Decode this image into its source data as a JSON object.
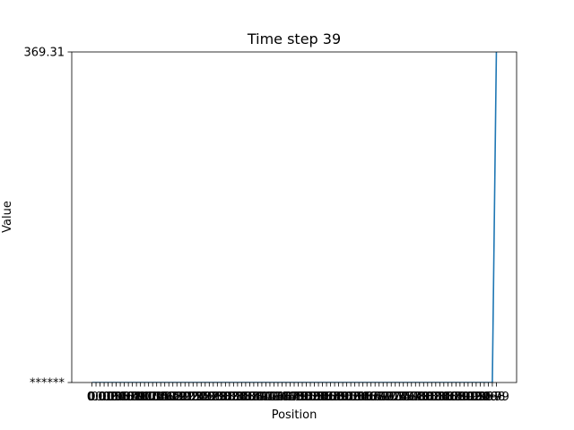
{
  "chart_data": {
    "type": "line",
    "title": "Time step 39",
    "xlabel": "Position",
    "ylabel": "Value",
    "x_tick_labels": [
      "0",
      "0.0",
      "0.01",
      "0.02",
      "0.03",
      "0.04",
      "0.05",
      "0.06",
      "0.07",
      "0.08",
      "0.09",
      "0.10",
      "0.11",
      "0.12",
      "0.13",
      "0.14",
      "0.15",
      "0.16",
      "0.17",
      "0.18",
      "0.19",
      "0.20",
      "0.21",
      "0.22",
      "0.23",
      "0.24",
      "0.25",
      "0.26",
      "0.27",
      "0.28",
      "0.29",
      "0.30",
      "0.31",
      "0.32",
      "0.33",
      "0.34",
      "0.35",
      "0.36",
      "0.37",
      "0.38",
      "0.39",
      "0.40",
      "0.41",
      "0.42",
      "0.43",
      "0.44",
      "0.45",
      "0.46",
      "0.47",
      "0.48",
      "0.49",
      "0.50",
      "0.51",
      "0.52",
      "0.53",
      "0.54",
      "0.55",
      "0.56",
      "0.57",
      "0.58",
      "0.59",
      "0.60",
      "0.61",
      "0.62",
      "0.63",
      "0.64",
      "0.65",
      "0.66",
      "0.67",
      "0.68",
      "0.69",
      "0.70",
      "0.71",
      "0.72",
      "0.73",
      "0.74",
      "0.75",
      "0.76",
      "0.77",
      "0.78",
      "0.79",
      "0.80",
      "0.81",
      "0.82",
      "0.83",
      "0.84",
      "0.85",
      "0.86",
      "0.87",
      "0.88",
      "0.89",
      "0.90",
      "0.91",
      "0.92",
      "0.93",
      "0.94",
      "0.95",
      "0.96",
      "0.97",
      "0.98",
      "0.99",
      "1.00"
    ],
    "y_tick_labels": [
      "******",
      "369.31"
    ],
    "ylim": [
      0,
      369.31
    ],
    "series": [
      {
        "color": "#1f77b4",
        "x": [
          0,
          1,
          2,
          3,
          4,
          5,
          6,
          7,
          8,
          9,
          10,
          11,
          12,
          13,
          14,
          15,
          16,
          17,
          18,
          19,
          20,
          21,
          22,
          23,
          24,
          25,
          26,
          27,
          28,
          29,
          30,
          31,
          32,
          33,
          34,
          35,
          36,
          37,
          38,
          39,
          40,
          41,
          42,
          43,
          44,
          45,
          46,
          47,
          48,
          49,
          50,
          51,
          52,
          53,
          54,
          55,
          56,
          57,
          58,
          59,
          60,
          61,
          62,
          63,
          64,
          65,
          66,
          67,
          68,
          69,
          70,
          71,
          72,
          73,
          74,
          75,
          76,
          77,
          78,
          79,
          80,
          81,
          82,
          83,
          84,
          85,
          86,
          87,
          88,
          89,
          90,
          91,
          92,
          93,
          94,
          95,
          96,
          97,
          98,
          99,
          100
        ],
        "values": [
          0,
          0,
          0,
          0,
          0,
          0,
          0,
          0,
          0,
          0,
          0,
          0,
          0,
          0,
          0,
          0,
          0,
          0,
          0,
          0,
          0,
          0,
          0,
          0,
          0,
          0,
          0,
          0,
          0,
          0,
          0,
          0,
          0,
          0,
          0,
          0,
          0,
          0,
          0,
          0,
          0,
          0,
          0,
          0,
          0,
          0,
          0,
          0,
          0,
          0,
          0,
          0,
          0,
          0,
          0,
          0,
          0,
          0,
          0,
          0,
          0,
          0,
          0,
          0,
          0,
          0,
          0,
          0,
          0,
          0,
          0,
          0,
          0,
          0,
          0,
          0,
          0,
          0,
          0,
          0,
          0,
          0,
          0,
          0,
          0,
          0,
          0,
          0,
          0,
          0,
          0,
          0,
          0,
          0,
          0,
          0,
          0,
          0,
          0,
          0,
          369.31
        ]
      }
    ],
    "grid": false,
    "legend": "none"
  }
}
